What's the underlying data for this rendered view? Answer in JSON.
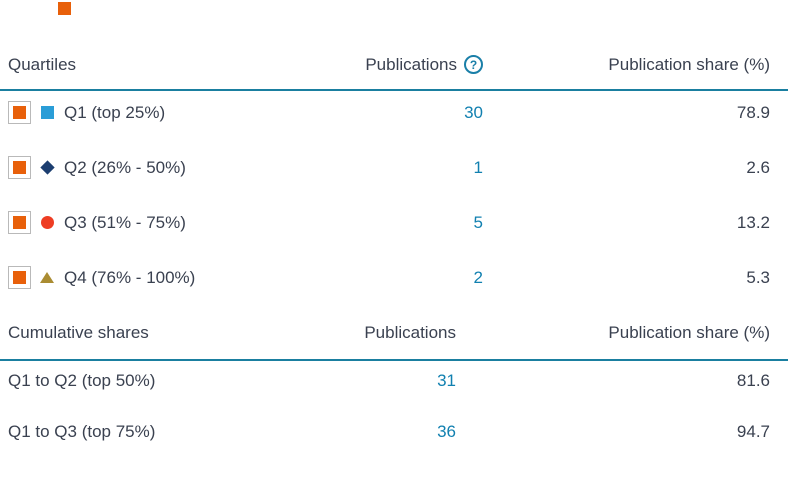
{
  "colors": {
    "teal_line": "#1a7fa0",
    "link_blue": "#1180b0",
    "text_dark": "#3a4150",
    "checkbox_border": "#b9b9b9",
    "checkbox_fill": "#e8600a",
    "help_teal": "#1a7fa8"
  },
  "page": {
    "cropped_icon": "orange-square-legend-fragment"
  },
  "quartiles_table": {
    "headers": {
      "col1": "Quartiles",
      "col2": "Publications",
      "col3": "Publication share (%)",
      "help_glyph": "?",
      "help_icon": "question-circle-icon"
    },
    "rows": [
      {
        "label": "Q1 (top 25%)",
        "publications": "30",
        "share": "78.9",
        "checked": true,
        "marker": {
          "shape": "square",
          "color": "#2a9dd7"
        }
      },
      {
        "label": "Q2 (26% - 50%)",
        "publications": "1",
        "share": "2.6",
        "checked": true,
        "marker": {
          "shape": "diamond",
          "color": "#1c3e70"
        }
      },
      {
        "label": "Q3 (51% - 75%)",
        "publications": "5",
        "share": "13.2",
        "checked": true,
        "marker": {
          "shape": "circle",
          "color": "#ee3d23"
        }
      },
      {
        "label": "Q4 (76% - 100%)",
        "publications": "2",
        "share": "5.3",
        "checked": true,
        "marker": {
          "shape": "triangle",
          "color": "#aa8c32"
        }
      }
    ]
  },
  "cumulative_table": {
    "headers": {
      "col1": "Cumulative shares",
      "col2": "Publications",
      "col3": "Publication share (%)"
    },
    "rows": [
      {
        "label": "Q1 to Q2 (top 50%)",
        "publications": "31",
        "share": "81.6"
      },
      {
        "label": "Q1 to Q3 (top 75%)",
        "publications": "36",
        "share": "94.7"
      }
    ]
  }
}
